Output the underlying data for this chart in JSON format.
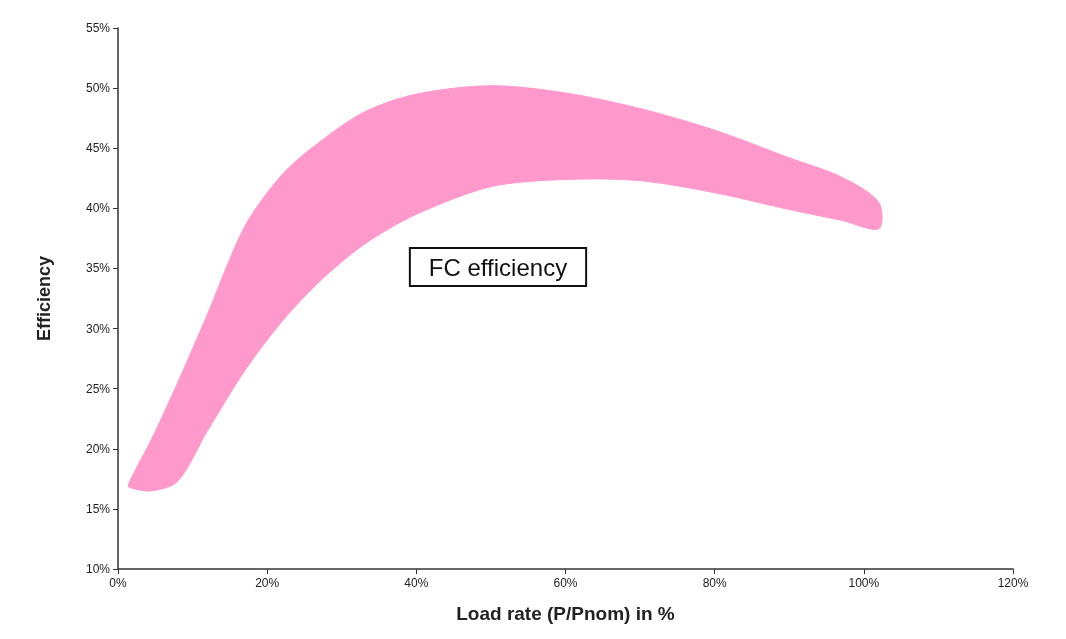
{
  "chart_data": {
    "type": "area",
    "xlabel": "Load rate (P/Pnom) in %",
    "ylabel": "Efficiency",
    "xlim": [
      0,
      120
    ],
    "xticks": [
      {
        "value": 0,
        "label": "0%"
      },
      {
        "value": 20,
        "label": "20%"
      },
      {
        "value": 40,
        "label": "40%"
      },
      {
        "value": 60,
        "label": "60%"
      },
      {
        "value": 80,
        "label": "80%"
      },
      {
        "value": 100,
        "label": "100%"
      },
      {
        "value": 120,
        "label": "120%"
      }
    ],
    "ylim": [
      10,
      55
    ],
    "yticks": [
      {
        "value": 10,
        "label": "10%"
      },
      {
        "value": 15,
        "label": "15%"
      },
      {
        "value": 20,
        "label": "20%"
      },
      {
        "value": 25,
        "label": "25%"
      },
      {
        "value": 30,
        "label": "30%"
      },
      {
        "value": 35,
        "label": "35%"
      },
      {
        "value": 40,
        "label": "40%"
      },
      {
        "value": 45,
        "label": "45%"
      },
      {
        "value": 50,
        "label": "50%"
      },
      {
        "value": 55,
        "label": "55%"
      }
    ],
    "grid": false,
    "annotations": [
      "FC efficiency"
    ],
    "series": [
      {
        "color": "#ff99cc",
        "x": [
          1.5,
          4.5,
          8,
          12,
          17,
          22,
          27,
          33,
          40,
          50,
          60,
          70,
          80,
          90,
          97,
          102
        ],
        "values": [
          null,
          null,
          null,
          null,
          null,
          null,
          null,
          null,
          null,
          null,
          null,
          null,
          null,
          null,
          null,
          null
        ],
        "lower": [
          16.8,
          16.5,
          17.3,
          21.5,
          26.5,
          30.6,
          33.9,
          37,
          39.5,
          41.8,
          42.4,
          42.3,
          41.3,
          39.9,
          39,
          38.3
        ],
        "upper": [
          17.2,
          20.8,
          25.5,
          31.2,
          38.5,
          42.8,
          45.5,
          48,
          49.5,
          50.2,
          49.6,
          48.3,
          46.5,
          44.2,
          42.6,
          40.5
        ]
      }
    ]
  }
}
